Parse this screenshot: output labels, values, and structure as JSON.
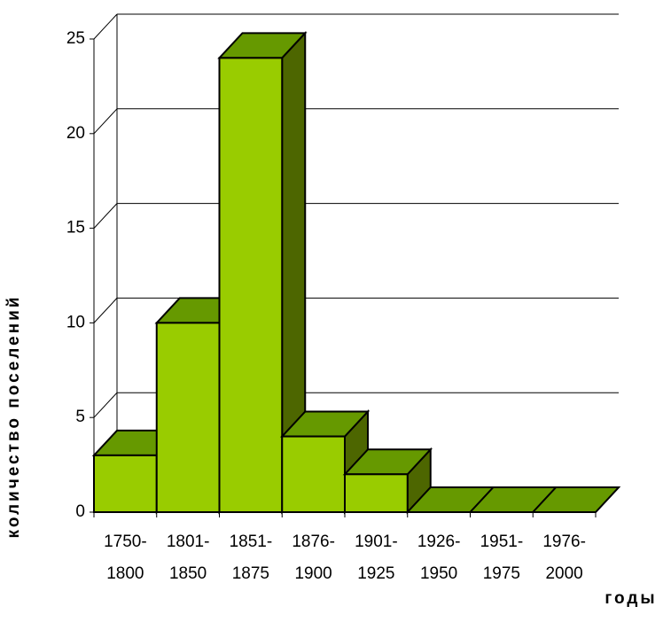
{
  "chart_data": {
    "type": "bar3d",
    "x_label": "годы",
    "y_label": "количество поселений",
    "categories": [
      "1750-1800",
      "1801-1850",
      "1851-1875",
      "1876-1900",
      "1901-1925",
      "1926-1950",
      "1951-1975",
      "1976-2000"
    ],
    "values": [
      3,
      10,
      24,
      4,
      2,
      0,
      0,
      0
    ],
    "color": "#99cc00",
    "ylim": [
      0,
      25
    ],
    "yticks": [
      0,
      5,
      10,
      15,
      20,
      25
    ],
    "grid": true
  }
}
